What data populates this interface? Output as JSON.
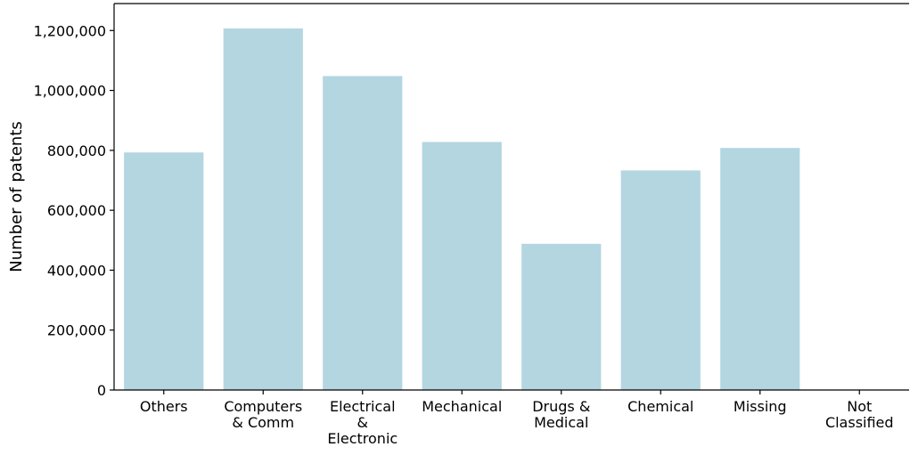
{
  "chart_data": {
    "type": "bar",
    "categories": [
      [
        "Others"
      ],
      [
        "Computers",
        "& Comm"
      ],
      [
        "Electrical",
        "&",
        "Electronic"
      ],
      [
        "Mechanical"
      ],
      [
        "Drugs &",
        "Medical"
      ],
      [
        "Chemical"
      ],
      [
        "Missing"
      ],
      [
        "Not",
        "Classified"
      ]
    ],
    "values": [
      793000,
      1207000,
      1048000,
      828000,
      488000,
      733000,
      808000,
      0
    ],
    "title": "",
    "xlabel": "",
    "ylabel": "Number of patents",
    "ylim": [
      0,
      1290000
    ],
    "yticks": [
      0,
      200000,
      400000,
      600000,
      800000,
      1000000,
      1200000
    ],
    "ytick_labels": [
      "0",
      "200,000",
      "400,000",
      "600,000",
      "800,000",
      "1,000,000",
      "1,200,000"
    ],
    "bar_color": "#b3d6e1",
    "grid": false,
    "legend": "none"
  }
}
